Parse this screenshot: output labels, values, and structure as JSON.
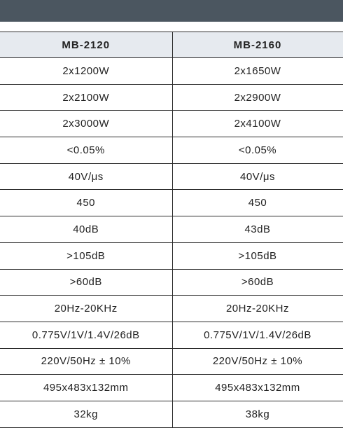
{
  "table": {
    "headers": [
      "MB-2120",
      "MB-2160"
    ],
    "rows": [
      [
        "2x1200W",
        "2x1650W"
      ],
      [
        "2x2100W",
        "2x2900W"
      ],
      [
        "2x3000W",
        "2x4100W"
      ],
      [
        "<0.05%",
        "<0.05%"
      ],
      [
        "40V/μs",
        "40V/μs"
      ],
      [
        "450",
        "450"
      ],
      [
        "40dB",
        "43dB"
      ],
      [
        ">105dB",
        ">105dB"
      ],
      [
        ">60dB",
        ">60dB"
      ],
      [
        "20Hz-20KHz",
        "20Hz-20KHz"
      ],
      [
        "0.775V/1V/1.4V/26dB",
        "0.775V/1V/1.4V/26dB"
      ],
      [
        "220V/50Hz ± 10%",
        "220V/50Hz ± 10%"
      ],
      [
        "495x483x132mm",
        "495x483x132mm"
      ],
      [
        "32kg",
        "38kg"
      ]
    ]
  },
  "colors": {
    "top_bar": "#4b5660",
    "header_background": "#e6eaef",
    "border": "#2b2b2b"
  }
}
